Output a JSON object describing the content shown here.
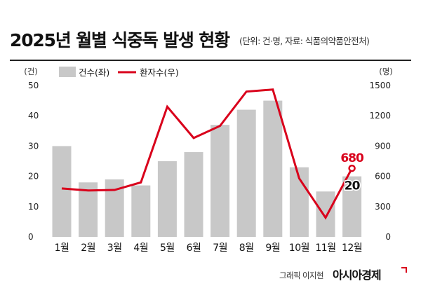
{
  "header": {
    "title": "2025년 월별 식중독 발생 현황",
    "subtitle": "(단위: 건·명, 자료: 식품의약품안전처)"
  },
  "footer": {
    "credit": "그래픽 이지현",
    "brand": "아시아경제"
  },
  "colors": {
    "bar": "#c8c8c8",
    "line": "#d9001b",
    "text": "#111111"
  },
  "chart_data": {
    "type": "bar",
    "categories": [
      "1월",
      "2월",
      "3월",
      "4월",
      "5월",
      "6월",
      "7월",
      "8월",
      "9월",
      "10월",
      "11월",
      "12월"
    ],
    "series": [
      {
        "name": "건수(좌)",
        "type": "bar",
        "axis": "left",
        "values": [
          30,
          18,
          19,
          17,
          25,
          28,
          37,
          42,
          45,
          23,
          15,
          20
        ]
      },
      {
        "name": "환자수(우)",
        "type": "line",
        "axis": "right",
        "values": [
          480,
          460,
          465,
          540,
          1290,
          980,
          1100,
          1440,
          1460,
          580,
          190,
          680
        ]
      }
    ],
    "y_left": {
      "unit": "(건)",
      "ticks": [
        0,
        10,
        20,
        30,
        40,
        50
      ],
      "range": [
        0,
        50
      ]
    },
    "y_right": {
      "unit": "(명)",
      "ticks": [
        0,
        300,
        600,
        900,
        1200,
        1500
      ],
      "range": [
        0,
        1500
      ]
    },
    "annotations": [
      {
        "series": "환자수(우)",
        "category": "12월",
        "label": "680"
      },
      {
        "series": "건수(좌)",
        "category": "12월",
        "label": "20"
      }
    ],
    "legend": "top-left",
    "grid": false
  }
}
